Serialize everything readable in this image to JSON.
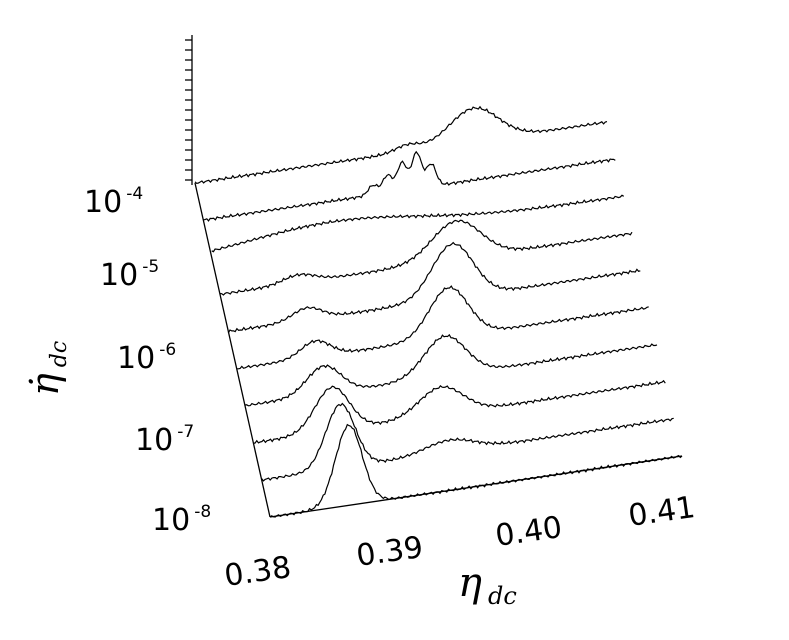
{
  "chart_data": {
    "type": "line",
    "style": "waterfall-3d",
    "title": "",
    "xlabel": "η",
    "xlabel_sub": "dc",
    "ylabel": "η̇",
    "ylabel_sub": "dc",
    "x_ticks": [
      "0.38",
      "0.39",
      "0.40",
      "0.41"
    ],
    "x_range": [
      0.378,
      0.412
    ],
    "y_ticks": [
      {
        "base": "10",
        "exp": "-8"
      },
      {
        "base": "10",
        "exp": "-7"
      },
      {
        "base": "10",
        "exp": "-6"
      },
      {
        "base": "10",
        "exp": "-5"
      },
      {
        "base": "10",
        "exp": "-4"
      }
    ],
    "series": [
      {
        "peaks": [
          {
            "x": 0.3845,
            "h": 1.0,
            "w": 0.0011
          }
        ]
      },
      {
        "peaks": [
          {
            "x": 0.3845,
            "h": 0.8,
            "w": 0.0012
          },
          {
            "x": 0.3935,
            "h": 0.15,
            "w": 0.002
          }
        ]
      },
      {
        "peaks": [
          {
            "x": 0.3845,
            "h": 0.55,
            "w": 0.0014
          },
          {
            "x": 0.3935,
            "h": 0.35,
            "w": 0.0018
          }
        ]
      },
      {
        "peaks": [
          {
            "x": 0.3845,
            "h": 0.35,
            "w": 0.0014
          },
          {
            "x": 0.3945,
            "h": 0.5,
            "w": 0.0017
          }
        ]
      },
      {
        "peaks": [
          {
            "x": 0.3845,
            "h": 0.2,
            "w": 0.0012
          },
          {
            "x": 0.3955,
            "h": 0.62,
            "w": 0.0016
          }
        ]
      },
      {
        "peaks": [
          {
            "x": 0.3845,
            "h": 0.15,
            "w": 0.0012
          },
          {
            "x": 0.3965,
            "h": 0.68,
            "w": 0.0017
          }
        ]
      },
      {
        "peaks": [
          {
            "x": 0.3845,
            "h": 0.1,
            "w": 0.0013
          },
          {
            "x": 0.3975,
            "h": 0.48,
            "w": 0.002
          }
        ]
      },
      {
        "peaks": [
          {
            "x": 0.388,
            "h": 0.22,
            "w": 0.007
          }
        ]
      },
      {
        "peaks": [
          {
            "x": 0.392,
            "h": 0.12,
            "w": 0.0004
          },
          {
            "x": 0.3932,
            "h": 0.22,
            "w": 0.0004
          },
          {
            "x": 0.3944,
            "h": 0.35,
            "w": 0.0004
          },
          {
            "x": 0.3956,
            "h": 0.45,
            "w": 0.0004
          },
          {
            "x": 0.3968,
            "h": 0.28,
            "w": 0.0004
          }
        ]
      },
      {
        "peaks": [
          {
            "x": 0.3955,
            "h": 0.08,
            "w": 0.001
          },
          {
            "x": 0.401,
            "h": 0.42,
            "w": 0.002
          }
        ]
      }
    ]
  }
}
